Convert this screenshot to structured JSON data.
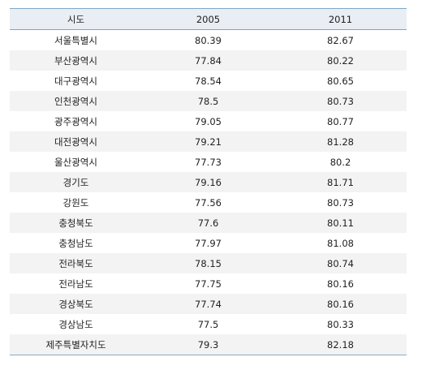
{
  "table": {
    "headers": [
      "시도",
      "2005",
      "2011"
    ],
    "rows": [
      [
        "서울특별시",
        "80.39",
        "82.67"
      ],
      [
        "부산광역시",
        "77.84",
        "80.22"
      ],
      [
        "대구광역시",
        "78.54",
        "80.65"
      ],
      [
        "인천광역시",
        "78.5",
        "80.73"
      ],
      [
        "광주광역시",
        "79.05",
        "80.77"
      ],
      [
        "대전광역시",
        "79.21",
        "81.28"
      ],
      [
        "울산광역시",
        "77.73",
        "80.2"
      ],
      [
        "경기도",
        "79.16",
        "81.71"
      ],
      [
        "강원도",
        "77.56",
        "80.73"
      ],
      [
        "충청북도",
        "77.6",
        "80.11"
      ],
      [
        "충청남도",
        "77.97",
        "81.08"
      ],
      [
        "전라북도",
        "78.15",
        "80.74"
      ],
      [
        "전라남도",
        "77.75",
        "80.16"
      ],
      [
        "경상북도",
        "77.74",
        "80.16"
      ],
      [
        "경상남도",
        "77.5",
        "80.33"
      ],
      [
        "제주특별자치도",
        "79.3",
        "82.18"
      ]
    ]
  },
  "colors": {
    "header_bg": "#e8eef4",
    "border": "#7aa9c8",
    "stripe": "#f3f3f3"
  }
}
